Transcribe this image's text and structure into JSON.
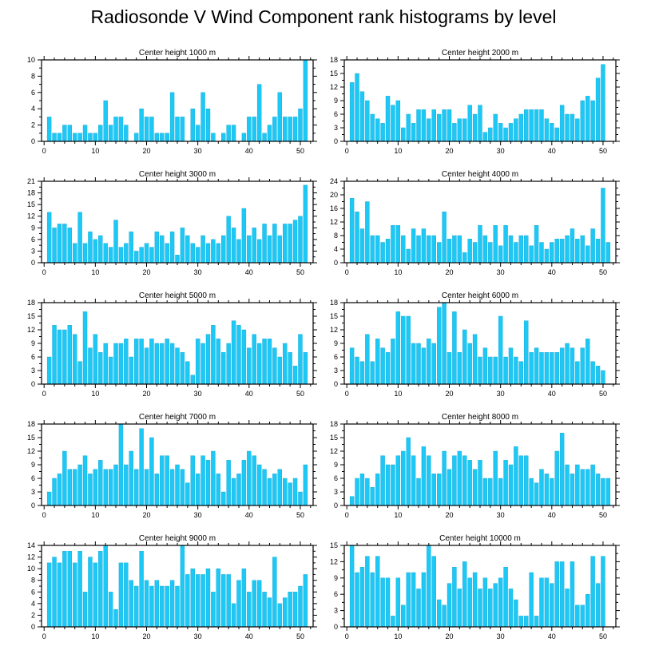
{
  "title": "Radiosonde V Wind Component rank histograms by level",
  "colors": {
    "bar": "#1ec8f5",
    "bar_edge": "#0aa6d6",
    "axis": "#000000"
  },
  "chart_data": [
    {
      "type": "bar",
      "title": "Center height 1000 m",
      "ylim": [
        0,
        10
      ],
      "yticks": [
        0,
        2,
        4,
        6,
        8,
        10
      ],
      "xlim": [
        -0.5,
        52.5
      ],
      "xticks": [
        0,
        10,
        20,
        30,
        40,
        50
      ],
      "x": [
        1,
        2,
        3,
        4,
        5,
        6,
        7,
        8,
        9,
        10,
        11,
        12,
        13,
        14,
        15,
        16,
        17,
        18,
        19,
        20,
        21,
        22,
        23,
        24,
        25,
        26,
        27,
        28,
        29,
        30,
        31,
        32,
        33,
        34,
        35,
        36,
        37,
        38,
        39,
        40,
        41,
        42,
        43,
        44,
        45,
        46,
        47,
        48,
        49,
        50,
        51
      ],
      "values": [
        3,
        1,
        1,
        2,
        2,
        1,
        1,
        2,
        1,
        1,
        2,
        5,
        2,
        3,
        3,
        2,
        0,
        1,
        4,
        3,
        3,
        1,
        1,
        1,
        6,
        3,
        3,
        0,
        4,
        2,
        6,
        4,
        1,
        0,
        1,
        2,
        2,
        0,
        1,
        3,
        3,
        7,
        1,
        2,
        3,
        6,
        3,
        3,
        3,
        4,
        10
      ]
    },
    {
      "type": "bar",
      "title": "Center height 2000 m",
      "ylim": [
        0,
        18
      ],
      "yticks": [
        0,
        3,
        6,
        9,
        12,
        15,
        18
      ],
      "xlim": [
        -0.5,
        52.5
      ],
      "xticks": [
        0,
        10,
        20,
        30,
        40,
        50
      ],
      "x": [
        1,
        2,
        3,
        4,
        5,
        6,
        7,
        8,
        9,
        10,
        11,
        12,
        13,
        14,
        15,
        16,
        17,
        18,
        19,
        20,
        21,
        22,
        23,
        24,
        25,
        26,
        27,
        28,
        29,
        30,
        31,
        32,
        33,
        34,
        35,
        36,
        37,
        38,
        39,
        40,
        41,
        42,
        43,
        44,
        45,
        46,
        47,
        48,
        49,
        50,
        51
      ],
      "values": [
        13,
        15,
        11,
        9,
        6,
        5,
        4,
        10,
        8,
        9,
        3,
        6,
        4,
        7,
        7,
        5,
        7,
        6,
        7,
        7,
        4,
        5,
        5,
        8,
        6,
        8,
        2,
        3,
        6,
        4,
        3,
        4,
        5,
        6,
        7,
        7,
        7,
        7,
        5,
        4,
        3,
        8,
        6,
        6,
        5,
        9,
        10,
        9,
        14,
        17,
        0
      ]
    },
    {
      "type": "bar",
      "title": "Center height 3000 m",
      "ylim": [
        0,
        21
      ],
      "yticks": [
        0,
        3,
        6,
        9,
        12,
        15,
        18,
        21
      ],
      "xlim": [
        -0.5,
        52.5
      ],
      "xticks": [
        0,
        10,
        20,
        30,
        40,
        50
      ],
      "x": [
        1,
        2,
        3,
        4,
        5,
        6,
        7,
        8,
        9,
        10,
        11,
        12,
        13,
        14,
        15,
        16,
        17,
        18,
        19,
        20,
        21,
        22,
        23,
        24,
        25,
        26,
        27,
        28,
        29,
        30,
        31,
        32,
        33,
        34,
        35,
        36,
        37,
        38,
        39,
        40,
        41,
        42,
        43,
        44,
        45,
        46,
        47,
        48,
        49,
        50,
        51
      ],
      "values": [
        13,
        9,
        10,
        10,
        9,
        5,
        13,
        5,
        8,
        6,
        7,
        5,
        4,
        11,
        4,
        5,
        8,
        3,
        4,
        5,
        4,
        8,
        7,
        5,
        8,
        2,
        9,
        7,
        5,
        4,
        7,
        5,
        6,
        5,
        7,
        12,
        9,
        6,
        14,
        7,
        9,
        6,
        10,
        7,
        10,
        7,
        10,
        10,
        11,
        12,
        20
      ]
    },
    {
      "type": "bar",
      "title": "Center height 4000 m",
      "ylim": [
        0,
        24
      ],
      "yticks": [
        0,
        4,
        8,
        12,
        16,
        20,
        24
      ],
      "xlim": [
        -0.5,
        52.5
      ],
      "xticks": [
        0,
        10,
        20,
        30,
        40,
        50
      ],
      "x": [
        1,
        2,
        3,
        4,
        5,
        6,
        7,
        8,
        9,
        10,
        11,
        12,
        13,
        14,
        15,
        16,
        17,
        18,
        19,
        20,
        21,
        22,
        23,
        24,
        25,
        26,
        27,
        28,
        29,
        30,
        31,
        32,
        33,
        34,
        35,
        36,
        37,
        38,
        39,
        40,
        41,
        42,
        43,
        44,
        45,
        46,
        47,
        48,
        49,
        50,
        51
      ],
      "values": [
        19,
        15,
        10,
        18,
        8,
        8,
        6,
        7,
        11,
        11,
        8,
        4,
        10,
        8,
        10,
        8,
        8,
        6,
        15,
        7,
        8,
        8,
        3,
        7,
        6,
        11,
        8,
        6,
        11,
        5,
        11,
        8,
        6,
        8,
        8,
        5,
        11,
        6,
        4,
        6,
        7,
        7,
        8,
        10,
        7,
        8,
        5,
        10,
        7,
        22,
        6
      ]
    },
    {
      "type": "bar",
      "title": "Center height 5000 m",
      "ylim": [
        0,
        18
      ],
      "yticks": [
        0,
        3,
        6,
        9,
        12,
        15,
        18
      ],
      "xlim": [
        -0.5,
        52.5
      ],
      "xticks": [
        0,
        10,
        20,
        30,
        40,
        50
      ],
      "x": [
        1,
        2,
        3,
        4,
        5,
        6,
        7,
        8,
        9,
        10,
        11,
        12,
        13,
        14,
        15,
        16,
        17,
        18,
        19,
        20,
        21,
        22,
        23,
        24,
        25,
        26,
        27,
        28,
        29,
        30,
        31,
        32,
        33,
        34,
        35,
        36,
        37,
        38,
        39,
        40,
        41,
        42,
        43,
        44,
        45,
        46,
        47,
        48,
        49,
        50,
        51
      ],
      "values": [
        6,
        13,
        12,
        12,
        13,
        11,
        5,
        16,
        8,
        11,
        7,
        9,
        6,
        9,
        9,
        10,
        6,
        10,
        10,
        8,
        10,
        9,
        9,
        10,
        9,
        8,
        7,
        5,
        2,
        10,
        9,
        11,
        13,
        10,
        7,
        9,
        14,
        13,
        12,
        8,
        11,
        9,
        10,
        10,
        8,
        6,
        9,
        7,
        4,
        11,
        7
      ]
    },
    {
      "type": "bar",
      "title": "Center height 6000 m",
      "ylim": [
        0,
        18
      ],
      "yticks": [
        0,
        3,
        6,
        9,
        12,
        15,
        18
      ],
      "xlim": [
        -0.5,
        52.5
      ],
      "xticks": [
        0,
        10,
        20,
        30,
        40,
        50
      ],
      "x": [
        1,
        2,
        3,
        4,
        5,
        6,
        7,
        8,
        9,
        10,
        11,
        12,
        13,
        14,
        15,
        16,
        17,
        18,
        19,
        20,
        21,
        22,
        23,
        24,
        25,
        26,
        27,
        28,
        29,
        30,
        31,
        32,
        33,
        34,
        35,
        36,
        37,
        38,
        39,
        40,
        41,
        42,
        43,
        44,
        45,
        46,
        47,
        48,
        49,
        50,
        51
      ],
      "values": [
        8,
        6,
        5,
        11,
        5,
        10,
        8,
        7,
        10,
        16,
        15,
        15,
        9,
        9,
        8,
        10,
        9,
        17,
        18,
        7,
        16,
        7,
        12,
        9,
        11,
        6,
        8,
        6,
        6,
        15,
        6,
        8,
        6,
        5,
        14,
        7,
        8,
        7,
        7,
        7,
        7,
        8,
        9,
        8,
        5,
        8,
        10,
        5,
        4,
        3,
        0
      ]
    },
    {
      "type": "bar",
      "title": "Center height 7000 m",
      "ylim": [
        0,
        18
      ],
      "yticks": [
        0,
        3,
        6,
        9,
        12,
        15,
        18
      ],
      "xlim": [
        -0.5,
        52.5
      ],
      "xticks": [
        0,
        10,
        20,
        30,
        40,
        50
      ],
      "x": [
        1,
        2,
        3,
        4,
        5,
        6,
        7,
        8,
        9,
        10,
        11,
        12,
        13,
        14,
        15,
        16,
        17,
        18,
        19,
        20,
        21,
        22,
        23,
        24,
        25,
        26,
        27,
        28,
        29,
        30,
        31,
        32,
        33,
        34,
        35,
        36,
        37,
        38,
        39,
        40,
        41,
        42,
        43,
        44,
        45,
        46,
        47,
        48,
        49,
        50,
        51
      ],
      "values": [
        3,
        6,
        7,
        12,
        8,
        8,
        9,
        11,
        7,
        8,
        10,
        8,
        8,
        9,
        18,
        9,
        12,
        8,
        17,
        8,
        15,
        7,
        11,
        11,
        8,
        9,
        8,
        5,
        11,
        7,
        11,
        10,
        12,
        7,
        3,
        10,
        6,
        7,
        10,
        12,
        11,
        9,
        8,
        6,
        7,
        8,
        6,
        5,
        6,
        3,
        9
      ]
    },
    {
      "type": "bar",
      "title": "Center height 8000 m",
      "ylim": [
        0,
        18
      ],
      "yticks": [
        0,
        3,
        6,
        9,
        12,
        15,
        18
      ],
      "xlim": [
        -0.5,
        52.5
      ],
      "xticks": [
        0,
        10,
        20,
        30,
        40,
        50
      ],
      "x": [
        1,
        2,
        3,
        4,
        5,
        6,
        7,
        8,
        9,
        10,
        11,
        12,
        13,
        14,
        15,
        16,
        17,
        18,
        19,
        20,
        21,
        22,
        23,
        24,
        25,
        26,
        27,
        28,
        29,
        30,
        31,
        32,
        33,
        34,
        35,
        36,
        37,
        38,
        39,
        40,
        41,
        42,
        43,
        44,
        45,
        46,
        47,
        48,
        49,
        50,
        51
      ],
      "values": [
        2,
        6,
        7,
        6,
        4,
        7,
        11,
        9,
        9,
        11,
        12,
        15,
        11,
        6,
        13,
        11,
        7,
        7,
        12,
        8,
        11,
        12,
        11,
        10,
        8,
        10,
        6,
        6,
        12,
        6,
        10,
        9,
        13,
        11,
        11,
        6,
        5,
        8,
        7,
        6,
        12,
        16,
        9,
        7,
        9,
        8,
        8,
        9,
        7,
        6,
        6
      ]
    },
    {
      "type": "bar",
      "title": "Center height 9000 m",
      "ylim": [
        0,
        14
      ],
      "yticks": [
        0,
        2,
        4,
        6,
        8,
        10,
        12,
        14
      ],
      "xlim": [
        -0.5,
        52.5
      ],
      "xticks": [
        0,
        10,
        20,
        30,
        40,
        50
      ],
      "x": [
        1,
        2,
        3,
        4,
        5,
        6,
        7,
        8,
        9,
        10,
        11,
        12,
        13,
        14,
        15,
        16,
        17,
        18,
        19,
        20,
        21,
        22,
        23,
        24,
        25,
        26,
        27,
        28,
        29,
        30,
        31,
        32,
        33,
        34,
        35,
        36,
        37,
        38,
        39,
        40,
        41,
        42,
        43,
        44,
        45,
        46,
        47,
        48,
        49,
        50,
        51
      ],
      "values": [
        11,
        12,
        11,
        13,
        13,
        11,
        13,
        6,
        12,
        11,
        13,
        14,
        6,
        3,
        11,
        11,
        8,
        7,
        13,
        8,
        7,
        8,
        7,
        7,
        8,
        7,
        14,
        9,
        10,
        9,
        9,
        10,
        6,
        10,
        9,
        9,
        4,
        8,
        10,
        6,
        8,
        8,
        6,
        5,
        12,
        4,
        5,
        6,
        6,
        7,
        9
      ]
    },
    {
      "type": "bar",
      "title": "Center height 10000 m",
      "ylim": [
        0,
        15
      ],
      "yticks": [
        0,
        3,
        6,
        9,
        12,
        15
      ],
      "xlim": [
        -0.5,
        52.5
      ],
      "xticks": [
        0,
        10,
        20,
        30,
        40,
        50
      ],
      "x": [
        1,
        2,
        3,
        4,
        5,
        6,
        7,
        8,
        9,
        10,
        11,
        12,
        13,
        14,
        15,
        16,
        17,
        18,
        19,
        20,
        21,
        22,
        23,
        24,
        25,
        26,
        27,
        28,
        29,
        30,
        31,
        32,
        33,
        34,
        35,
        36,
        37,
        38,
        39,
        40,
        41,
        42,
        43,
        44,
        45,
        46,
        47,
        48,
        49,
        50,
        51
      ],
      "values": [
        15,
        10,
        11,
        13,
        10,
        13,
        9,
        9,
        2,
        9,
        4,
        10,
        10,
        7,
        10,
        15,
        13,
        5,
        4,
        8,
        11,
        7,
        12,
        9,
        10,
        7,
        9,
        7,
        8,
        9,
        11,
        7,
        5,
        2,
        2,
        10,
        2,
        9,
        9,
        8,
        12,
        12,
        7,
        12,
        4,
        4,
        6,
        13,
        8,
        13,
        0
      ]
    }
  ]
}
